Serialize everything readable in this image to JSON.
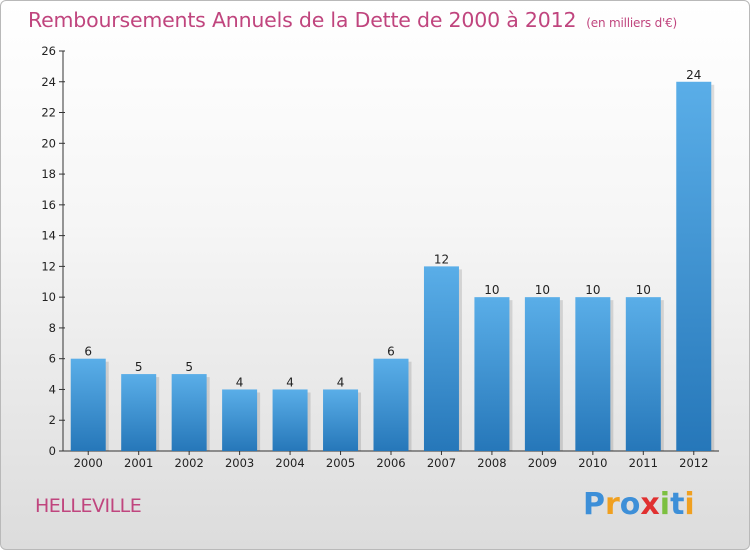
{
  "chart_data": {
    "type": "bar",
    "title": "Remboursements Annuels de la Dette de 2000 à 2012",
    "subtitle": "(en milliers d'€)",
    "categories": [
      "2000",
      "2001",
      "2002",
      "2003",
      "2004",
      "2005",
      "2006",
      "2007",
      "2008",
      "2009",
      "2010",
      "2011",
      "2012"
    ],
    "values": [
      6,
      5,
      5,
      4,
      4,
      4,
      6,
      12,
      10,
      10,
      10,
      10,
      24
    ],
    "ylim": [
      0,
      26
    ],
    "yticks": [
      0,
      2,
      4,
      6,
      8,
      10,
      12,
      14,
      16,
      18,
      20,
      22,
      24,
      26
    ],
    "grid": false,
    "bar_color": "#4fa3e0"
  },
  "commune": "HELLEVILLE",
  "logo": {
    "letters": [
      "P",
      "r",
      "o",
      "x",
      "i",
      "t",
      "i"
    ],
    "colors": [
      "#3d8fd8",
      "#f0a020",
      "#3d8fd8",
      "#e03030",
      "#7cc040",
      "#3d8fd8",
      "#f0a020"
    ]
  }
}
